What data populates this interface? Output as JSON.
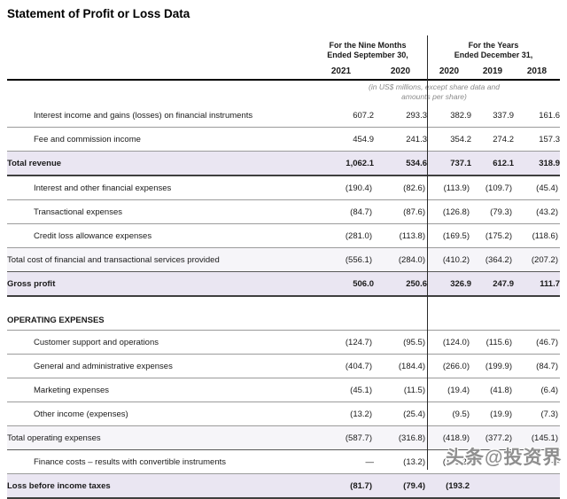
{
  "page": {
    "title": "Statement of Profit or Loss Data"
  },
  "table": {
    "group1": {
      "line1": "For the Nine Months",
      "line2": "Ended September 30,"
    },
    "group2": {
      "line1": "For the Years",
      "line2": "Ended December 31,"
    },
    "years": [
      "2021",
      "2020",
      "2020",
      "2019",
      "2018"
    ],
    "note": {
      "line1": "(in US$ millions, except share data and",
      "line2": "amounts per share)"
    },
    "rows": [
      {
        "label": "Interest income and gains (losses) on financial instruments",
        "style": "item",
        "values": [
          "607.2",
          "293.3",
          "382.9",
          "337.9",
          "161.6"
        ]
      },
      {
        "label": "Fee and commission income",
        "style": "item",
        "values": [
          "454.9",
          "241.3",
          "354.2",
          "274.2",
          "157.3"
        ]
      },
      {
        "label": "Total revenue",
        "style": "total-strong",
        "values": [
          "1,062.1",
          "534.6",
          "737.1",
          "612.1",
          "318.9"
        ]
      },
      {
        "label": "Interest and other financial expenses",
        "style": "item",
        "values": [
          "(190.4)",
          "(82.6)",
          "(113.9)",
          "(109.7)",
          "(45.4)"
        ]
      },
      {
        "label": "Transactional expenses",
        "style": "item",
        "values": [
          "(84.7)",
          "(87.6)",
          "(126.8)",
          "(79.3)",
          "(43.2)"
        ]
      },
      {
        "label": "Credit loss allowance expenses",
        "style": "item",
        "values": [
          "(281.0)",
          "(113.8)",
          "(169.5)",
          "(175.2)",
          "(118.6)"
        ]
      },
      {
        "label": "Total cost of financial and transactional services provided",
        "style": "total-light",
        "values": [
          "(556.1)",
          "(284.0)",
          "(410.2)",
          "(364.2)",
          "(207.2)"
        ]
      },
      {
        "label": "Gross profit",
        "style": "total-strong",
        "values": [
          "506.0",
          "250.6",
          "326.9",
          "247.9",
          "111.7"
        ]
      },
      {
        "label": "",
        "style": "gap",
        "values": [
          "",
          "",
          "",
          "",
          ""
        ]
      },
      {
        "label": "OPERATING EXPENSES",
        "style": "section",
        "values": [
          "",
          "",
          "",
          "",
          ""
        ]
      },
      {
        "label": "Customer support and operations",
        "style": "item",
        "values": [
          "(124.7)",
          "(95.5)",
          "(124.0)",
          "(115.6)",
          "(46.7)"
        ]
      },
      {
        "label": "General and administrative expenses",
        "style": "item",
        "values": [
          "(404.7)",
          "(184.4)",
          "(266.0)",
          "(199.9)",
          "(84.7)"
        ]
      },
      {
        "label": "Marketing expenses",
        "style": "item",
        "values": [
          "(45.1)",
          "(11.5)",
          "(19.4)",
          "(41.8)",
          "(6.4)"
        ]
      },
      {
        "label": "Other income (expenses)",
        "style": "item",
        "values": [
          "(13.2)",
          "(25.4)",
          "(9.5)",
          "(19.9)",
          "(7.3)"
        ]
      },
      {
        "label": "Total operating expenses",
        "style": "total-light",
        "values": [
          "(587.7)",
          "(316.8)",
          "(418.9)",
          "(377.2)",
          "(145.1)"
        ]
      },
      {
        "label": "Finance costs – results with convertible instruments",
        "style": "item",
        "values": [
          "—",
          "(13.2)",
          "(101.2)",
          "—",
          "—"
        ]
      },
      {
        "label": "Loss before income taxes",
        "style": "total-strong",
        "values": [
          "(81.7)",
          "(79.4)",
          "(193.2",
          "",
          ""
        ]
      }
    ]
  },
  "watermark": {
    "text": "头条@投资界"
  },
  "colors": {
    "highlight_strong": "#eae6f2",
    "highlight_light": "#f6f5f9",
    "header_rule": "#000000",
    "row_rule": "#9b9b9b",
    "total_rule": "#3f3f3f",
    "note_text": "#8a8a8a",
    "watermark_text": "#8f8f8f"
  }
}
